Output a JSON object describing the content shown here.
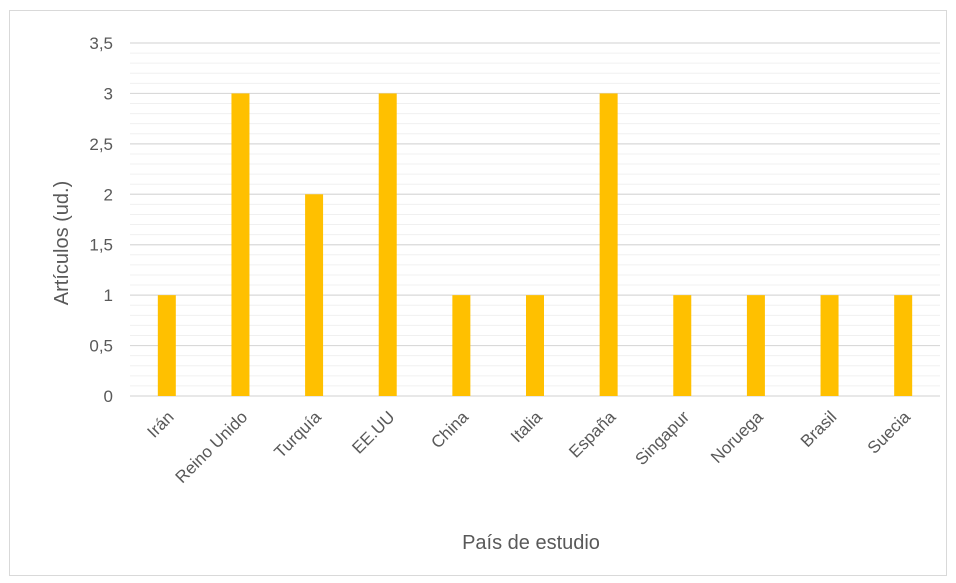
{
  "chart_data": {
    "type": "bar",
    "categories": [
      "Irán",
      "Reino Unido",
      "Turquía",
      "EE.UU",
      "China",
      "Italia",
      "España",
      "Singapur",
      "Noruega",
      "Brasil",
      "Suecia"
    ],
    "values": [
      1,
      3,
      2,
      3,
      1,
      1,
      3,
      1,
      1,
      1,
      1
    ],
    "xlabel": "País de estudio",
    "ylabel": "Artículos (ud.)",
    "ylim": [
      0,
      3.5
    ],
    "yticks": [
      "0",
      "0,5",
      "1",
      "1,5",
      "2",
      "2,5",
      "3",
      "3,5"
    ],
    "grid": true,
    "bar_color": "#ffc000",
    "grid_color": "#d9d9d9"
  }
}
